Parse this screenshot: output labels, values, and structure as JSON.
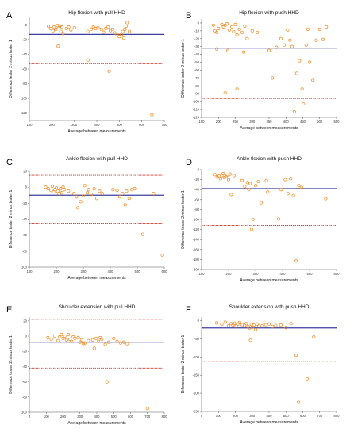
{
  "chart_data": [
    {
      "type": "scatter",
      "panel": "A",
      "title": "Hip flexion with pull HHD",
      "xlabel": "Average between measurements",
      "ylabel": "Difference tester 2 minus tester 1",
      "xlim": [
        100,
        700
      ],
      "ylim": [
        -130,
        10
      ],
      "xticks": [
        100,
        200,
        300,
        400,
        500,
        600,
        700
      ],
      "yticks": [
        0,
        -20,
        -40,
        -60,
        -80,
        -100,
        -120
      ],
      "mean": -13,
      "loa_upper": null,
      "loa_lower": -53,
      "points": [
        [
          185,
          -2
        ],
        [
          195,
          -5
        ],
        [
          205,
          -8
        ],
        [
          210,
          -3
        ],
        [
          218,
          -6
        ],
        [
          225,
          -1
        ],
        [
          230,
          -4
        ],
        [
          235,
          -2
        ],
        [
          240,
          -9
        ],
        [
          245,
          -3
        ],
        [
          250,
          -12
        ],
        [
          228,
          -29
        ],
        [
          265,
          -5
        ],
        [
          275,
          -3
        ],
        [
          285,
          -7
        ],
        [
          300,
          -4
        ],
        [
          360,
          -9
        ],
        [
          375,
          -6
        ],
        [
          385,
          -3
        ],
        [
          395,
          -5
        ],
        [
          405,
          -4
        ],
        [
          420,
          -6
        ],
        [
          430,
          -10
        ],
        [
          440,
          -5
        ],
        [
          450,
          -3
        ],
        [
          460,
          -8
        ],
        [
          470,
          -6
        ],
        [
          480,
          -11
        ],
        [
          490,
          -14
        ],
        [
          500,
          -16
        ],
        [
          510,
          -13
        ],
        [
          515,
          -9
        ],
        [
          520,
          -18
        ],
        [
          525,
          -6
        ],
        [
          530,
          -2
        ],
        [
          535,
          3
        ],
        [
          545,
          -9
        ],
        [
          360,
          -48
        ],
        [
          455,
          -63
        ],
        [
          645,
          -122
        ]
      ]
    },
    {
      "type": "scatter",
      "panel": "B",
      "title": "Hip flexion with push HHD",
      "xlabel": "Average between measurements",
      "ylabel": "Difference tester 2 minus tester 1",
      "xlim": [
        150,
        550
      ],
      "ylim": [
        -120,
        5
      ],
      "xticks": [
        150,
        200,
        250,
        300,
        350,
        400,
        450,
        500,
        550
      ],
      "yticks": [
        0,
        -10,
        -20,
        -30,
        -40,
        -50,
        -60,
        -70,
        -80,
        -90,
        -100,
        -110,
        -120
      ],
      "mean": -32,
      "loa_upper": null,
      "loa_lower": -96,
      "points": [
        [
          185,
          -3
        ],
        [
          190,
          -10
        ],
        [
          195,
          -12
        ],
        [
          200,
          -7
        ],
        [
          210,
          -2
        ],
        [
          215,
          -5
        ],
        [
          220,
          -3
        ],
        [
          225,
          -1
        ],
        [
          232,
          -9
        ],
        [
          240,
          -5
        ],
        [
          245,
          -11
        ],
        [
          250,
          -2
        ],
        [
          255,
          -15
        ],
        [
          262,
          -8
        ],
        [
          270,
          -12
        ],
        [
          278,
          -4
        ],
        [
          285,
          -20
        ],
        [
          300,
          -10
        ],
        [
          315,
          -12
        ],
        [
          195,
          -33
        ],
        [
          228,
          -35
        ],
        [
          275,
          -37
        ],
        [
          220,
          -89
        ],
        [
          255,
          -84
        ],
        [
          350,
          -35
        ],
        [
          360,
          -70
        ],
        [
          372,
          -31
        ],
        [
          385,
          -20
        ],
        [
          395,
          -28
        ],
        [
          405,
          -9
        ],
        [
          412,
          -22
        ],
        [
          418,
          -30
        ],
        [
          425,
          -113
        ],
        [
          432,
          -64
        ],
        [
          440,
          -48
        ],
        [
          448,
          -84
        ],
        [
          452,
          -103
        ],
        [
          460,
          -28
        ],
        [
          465,
          -8
        ],
        [
          470,
          -50
        ],
        [
          480,
          -73
        ],
        [
          490,
          -22
        ],
        [
          500,
          -8
        ],
        [
          510,
          -21
        ],
        [
          520,
          -5
        ]
      ]
    },
    {
      "type": "scatter",
      "panel": "C",
      "title": "Ankle flexion with pull HHD",
      "xlabel": "Average between measurements",
      "ylabel": "Difference tester 2 minus tester 1",
      "xlim": [
        100,
        600
      ],
      "ylim": [
        -100,
        20
      ],
      "xticks": [
        100,
        200,
        300,
        400,
        500,
        600
      ],
      "yticks": [
        20,
        0,
        -20,
        -40,
        -60,
        -80,
        -100
      ],
      "mean": -10,
      "loa_upper": 15,
      "loa_lower": -45,
      "points": [
        [
          160,
          0
        ],
        [
          170,
          -2
        ],
        [
          180,
          -4
        ],
        [
          185,
          1
        ],
        [
          190,
          -6
        ],
        [
          195,
          -3
        ],
        [
          200,
          -1
        ],
        [
          205,
          -5
        ],
        [
          210,
          -8
        ],
        [
          215,
          -2
        ],
        [
          220,
          -7
        ],
        [
          225,
          0
        ],
        [
          230,
          -3
        ],
        [
          245,
          -5
        ],
        [
          265,
          -8
        ],
        [
          275,
          -12
        ],
        [
          280,
          -26
        ],
        [
          290,
          -18
        ],
        [
          300,
          -11
        ],
        [
          305,
          2
        ],
        [
          315,
          -7
        ],
        [
          320,
          -3
        ],
        [
          330,
          -9
        ],
        [
          340,
          -2
        ],
        [
          350,
          -14
        ],
        [
          360,
          -5
        ],
        [
          370,
          -8
        ],
        [
          410,
          -3
        ],
        [
          425,
          -4
        ],
        [
          435,
          -12
        ],
        [
          445,
          -8
        ],
        [
          455,
          -22
        ],
        [
          460,
          -5
        ],
        [
          470,
          -14
        ],
        [
          480,
          -3
        ],
        [
          490,
          -2
        ],
        [
          520,
          -59
        ],
        [
          560,
          -8
        ],
        [
          593,
          -85
        ]
      ]
    },
    {
      "type": "scatter",
      "panel": "D",
      "title": "Ankle flexion with push HHD",
      "xlabel": "Average between measurements",
      "ylabel": "Difference tester 2 minus tester 1",
      "xlim": [
        100,
        600
      ],
      "ylim": [
        -200,
        0
      ],
      "xticks": [
        100,
        200,
        300,
        400,
        500,
        600
      ],
      "yticks": [
        0,
        -20,
        -40,
        -60,
        -80,
        -100,
        -120,
        -140,
        -160,
        -180,
        -200
      ],
      "mean": -38,
      "loa_upper": null,
      "loa_lower": -112,
      "points": [
        [
          150,
          -10
        ],
        [
          158,
          -15
        ],
        [
          165,
          -13
        ],
        [
          170,
          -18
        ],
        [
          175,
          -12
        ],
        [
          180,
          -8
        ],
        [
          185,
          -16
        ],
        [
          190,
          -14
        ],
        [
          195,
          -11
        ],
        [
          200,
          -20
        ],
        [
          205,
          -9
        ],
        [
          210,
          -50
        ],
        [
          220,
          -12
        ],
        [
          250,
          -22
        ],
        [
          260,
          -34
        ],
        [
          270,
          -26
        ],
        [
          275,
          -40
        ],
        [
          280,
          -28
        ],
        [
          285,
          -120
        ],
        [
          290,
          -100
        ],
        [
          300,
          -32
        ],
        [
          310,
          -24
        ],
        [
          320,
          -66
        ],
        [
          340,
          -22
        ],
        [
          345,
          -45
        ],
        [
          385,
          -99
        ],
        [
          395,
          -40
        ],
        [
          410,
          -20
        ],
        [
          420,
          -48
        ],
        [
          430,
          -18
        ],
        [
          440,
          -52
        ],
        [
          450,
          -183
        ],
        [
          460,
          -32
        ],
        [
          470,
          -36
        ],
        [
          560,
          -58
        ]
      ]
    },
    {
      "type": "scatter",
      "panel": "E",
      "title": "Shoulder extension with pull HHD",
      "xlabel": "Average between measurements",
      "ylabel": "Difference tester 2 minus tester 1",
      "xlim": [
        0,
        800
      ],
      "ylim": [
        -100,
        25
      ],
      "xticks": [
        0,
        100,
        200,
        300,
        400,
        500,
        600,
        700,
        800
      ],
      "yticks": [
        20,
        0,
        -20,
        -40,
        -60,
        -80,
        -100
      ],
      "mean": -8,
      "loa_upper": 22,
      "loa_lower": -42,
      "points": [
        [
          110,
          -2
        ],
        [
          130,
          -4
        ],
        [
          150,
          0
        ],
        [
          170,
          -6
        ],
        [
          180,
          -1
        ],
        [
          190,
          2
        ],
        [
          200,
          -3
        ],
        [
          210,
          0
        ],
        [
          220,
          -5
        ],
        [
          230,
          2
        ],
        [
          240,
          -4
        ],
        [
          250,
          -7
        ],
        [
          260,
          -1
        ],
        [
          270,
          -3
        ],
        [
          290,
          -2
        ],
        [
          300,
          -8
        ],
        [
          310,
          -5
        ],
        [
          320,
          -10
        ],
        [
          330,
          -9
        ],
        [
          350,
          -6
        ],
        [
          375,
          -5
        ],
        [
          385,
          -16
        ],
        [
          395,
          -3
        ],
        [
          410,
          -7
        ],
        [
          420,
          -2
        ],
        [
          430,
          -4
        ],
        [
          450,
          -11
        ],
        [
          470,
          -8
        ],
        [
          500,
          -3
        ],
        [
          520,
          -7
        ],
        [
          540,
          -9
        ],
        [
          560,
          -8
        ],
        [
          580,
          -10
        ],
        [
          460,
          -60
        ],
        [
          700,
          -95
        ]
      ]
    },
    {
      "type": "scatter",
      "panel": "F",
      "title": "Shoulder extension with push HHD",
      "xlabel": "Average between measurements",
      "ylabel": "Difference tester 2 minus tester 1",
      "xlim": [
        0,
        800
      ],
      "ylim": [
        -250,
        10
      ],
      "xticks": [
        0,
        100,
        200,
        300,
        400,
        500,
        600,
        700,
        800
      ],
      "yticks": [
        0,
        -50,
        -100,
        -150,
        -200,
        -250
      ],
      "mean": -20,
      "loa_upper": null,
      "loa_lower": -112,
      "points": [
        [
          90,
          -6
        ],
        [
          120,
          -10
        ],
        [
          140,
          -4
        ],
        [
          160,
          -14
        ],
        [
          175,
          -8
        ],
        [
          185,
          -12
        ],
        [
          195,
          -7
        ],
        [
          205,
          -15
        ],
        [
          215,
          -9
        ],
        [
          225,
          -5
        ],
        [
          240,
          -11
        ],
        [
          255,
          -13
        ],
        [
          265,
          -8
        ],
        [
          275,
          -16
        ],
        [
          285,
          -20
        ],
        [
          290,
          -54
        ],
        [
          295,
          -10
        ],
        [
          300,
          -18
        ],
        [
          310,
          -12
        ],
        [
          320,
          -25
        ],
        [
          330,
          -9
        ],
        [
          340,
          -15
        ],
        [
          360,
          -14
        ],
        [
          380,
          -11
        ],
        [
          400,
          -9
        ],
        [
          420,
          -16
        ],
        [
          440,
          -13
        ],
        [
          470,
          -12
        ],
        [
          500,
          -19
        ],
        [
          530,
          -8
        ],
        [
          560,
          -95
        ],
        [
          575,
          -225
        ],
        [
          625,
          -160
        ],
        [
          665,
          -45
        ]
      ]
    }
  ]
}
